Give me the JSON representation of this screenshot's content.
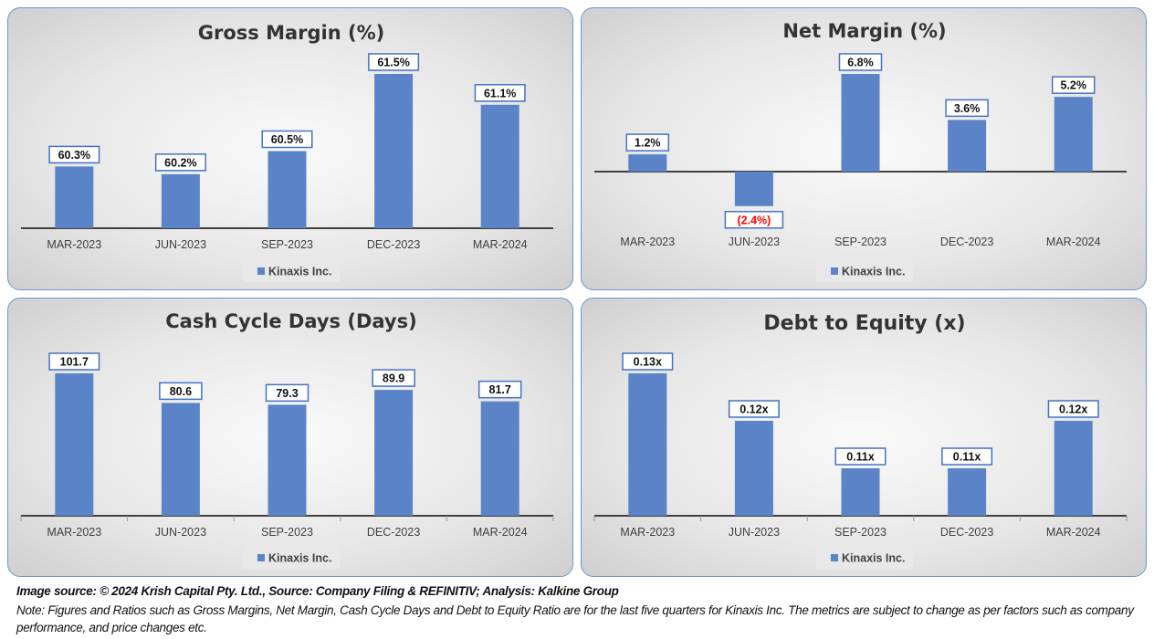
{
  "colors": {
    "bar": "#5b84c8",
    "label_border": "#4472c4",
    "negative": "#ff0000",
    "axis": "#404040"
  },
  "chart_data": [
    {
      "type": "bar",
      "title": "Gross Margin (%)",
      "categories": [
        "MAR-2023",
        "JUN-2023",
        "SEP-2023",
        "DEC-2023",
        "MAR-2024"
      ],
      "values": [
        60.3,
        60.2,
        60.5,
        61.5,
        61.1
      ],
      "labels": [
        "60.3%",
        "60.2%",
        "60.5%",
        "61.5%",
        "61.1%"
      ],
      "legend": "Kinaxis Inc.",
      "ylim": [
        59.5,
        62.2
      ],
      "legend_position": "bottom"
    },
    {
      "type": "bar",
      "title": "Net Margin (%)",
      "categories": [
        "MAR-2023",
        "JUN-2023",
        "SEP-2023",
        "DEC-2023",
        "MAR-2024"
      ],
      "values": [
        1.2,
        -2.4,
        6.8,
        3.6,
        5.2
      ],
      "labels": [
        "1.2%",
        "(2.4%)",
        "6.8%",
        "3.6%",
        "5.2%"
      ],
      "legend": "Kinaxis Inc.",
      "ylim": [
        -5,
        9
      ],
      "legend_position": "bottom"
    },
    {
      "type": "bar",
      "title": "Cash Cycle Days (Days)",
      "categories": [
        "MAR-2023",
        "JUN-2023",
        "SEP-2023",
        "DEC-2023",
        "MAR-2024"
      ],
      "values": [
        101.7,
        80.6,
        79.3,
        89.9,
        81.7
      ],
      "labels": [
        "101.7",
        "80.6",
        "79.3",
        "89.9",
        "81.7"
      ],
      "legend": "Kinaxis Inc.",
      "ylim": [
        0,
        120
      ],
      "legend_position": "bottom"
    },
    {
      "type": "bar",
      "title": "Debt to Equity (x)",
      "categories": [
        "MAR-2023",
        "JUN-2023",
        "SEP-2023",
        "DEC-2023",
        "MAR-2024"
      ],
      "values": [
        0.13,
        0.12,
        0.11,
        0.11,
        0.12
      ],
      "labels": [
        "0.13x",
        "0.12x",
        "0.11x",
        "0.11x",
        "0.12x"
      ],
      "legend": "Kinaxis Inc.",
      "ylim": [
        0.1,
        0.135
      ],
      "legend_position": "bottom"
    }
  ],
  "footer": {
    "source": "Image source: © 2024 Krish Capital Pty. Ltd., Source: Company Filing & REFINITIV; Analysis: Kalkine Group",
    "note": "Note: Figures and Ratios such as  Gross Margins, Net Margin, Cash Cycle Days and Debt to Equity Ratio are for the last five quarters for Kinaxis Inc. The metrics are subject to change as per factors such as company performance, and price changes etc."
  }
}
